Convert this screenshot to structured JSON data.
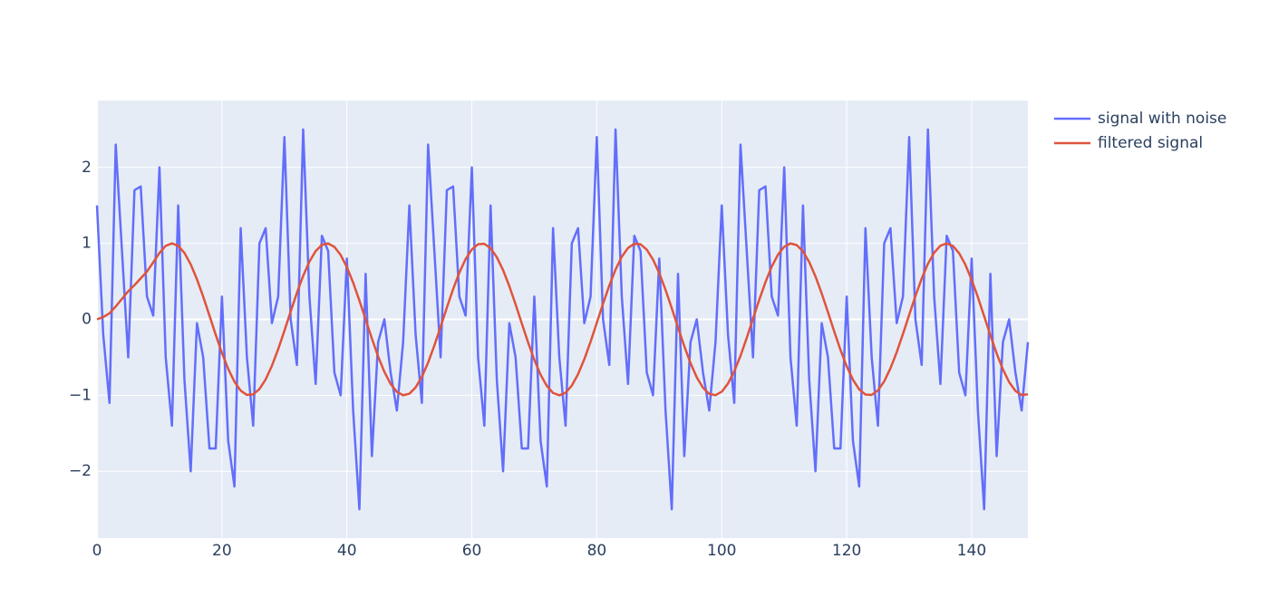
{
  "chart_data": {
    "type": "line",
    "x": [
      0,
      1,
      2,
      3,
      4,
      5,
      6,
      7,
      8,
      9,
      10,
      11,
      12,
      13,
      14,
      15,
      16,
      17,
      18,
      19,
      20,
      21,
      22,
      23,
      24,
      25,
      26,
      27,
      28,
      29,
      30,
      31,
      32,
      33,
      34,
      35,
      36,
      37,
      38,
      39,
      40,
      41,
      42,
      43,
      44,
      45,
      46,
      47,
      48,
      49,
      50,
      51,
      52,
      53,
      54,
      55,
      56,
      57,
      58,
      59,
      60,
      61,
      62,
      63,
      64,
      65,
      66,
      67,
      68,
      69,
      70,
      71,
      72,
      73,
      74,
      75,
      76,
      77,
      78,
      79,
      80,
      81,
      82,
      83,
      84,
      85,
      86,
      87,
      88,
      89,
      90,
      91,
      92,
      93,
      94,
      95,
      96,
      97,
      98,
      99,
      100,
      101,
      102,
      103,
      104,
      105,
      106,
      107,
      108,
      109,
      110,
      111,
      112,
      113,
      114,
      115,
      116,
      117,
      118,
      119,
      120,
      121,
      122,
      123,
      124,
      125,
      126,
      127,
      128,
      129,
      130,
      131,
      132,
      133,
      134,
      135,
      136,
      137,
      138,
      139,
      140,
      141,
      142,
      143,
      144,
      145,
      146,
      147,
      148,
      149
    ],
    "series": [
      {
        "name": "signal with noise",
        "color": "#636efa",
        "values": [
          1.5,
          -0.2,
          -1.1,
          2.3,
          0.9,
          -0.5,
          1.7,
          1.75,
          0.3,
          0.05,
          2.0,
          -0.5,
          -1.4,
          1.5,
          -0.8,
          -2.0,
          -0.05,
          -0.5,
          -1.7,
          -1.7,
          0.3,
          -1.6,
          -2.2,
          1.2,
          -0.5,
          -1.4,
          1.0,
          1.2,
          -0.05,
          0.3,
          2.4,
          0.0,
          -0.6,
          2.5,
          0.3,
          -0.85,
          1.1,
          0.9,
          -0.7,
          -1.0,
          0.8,
          -1.2,
          -2.5,
          0.6,
          -1.8,
          -0.3,
          0.0,
          -0.7,
          -1.2,
          -0.3,
          1.5,
          -0.2,
          -1.1,
          2.3,
          0.9,
          -0.5,
          1.7,
          1.75,
          0.3,
          0.05,
          2.0,
          -0.5,
          -1.4,
          1.5,
          -0.8,
          -2.0,
          -0.05,
          -0.5,
          -1.7,
          -1.7,
          0.3,
          -1.6,
          -2.2,
          1.2,
          -0.5,
          -1.4,
          1.0,
          1.2,
          -0.05,
          0.3,
          2.4,
          0.0,
          -0.6,
          2.5,
          0.3,
          -0.85,
          1.1,
          0.9,
          -0.7,
          -1.0,
          0.8,
          -1.2,
          -2.5,
          0.6,
          -1.8,
          -0.3,
          0.0,
          -0.7,
          -1.2,
          -0.3,
          1.5,
          -0.2,
          -1.1,
          2.3,
          0.9,
          -0.5,
          1.7,
          1.75,
          0.3,
          0.05,
          2.0,
          -0.5,
          -1.4,
          1.5,
          -0.8,
          -2.0,
          -0.05,
          -0.5,
          -1.7,
          -1.7,
          0.3,
          -1.6,
          -2.2,
          1.2,
          -0.5,
          -1.4,
          1.0,
          1.2,
          -0.05,
          0.3,
          2.4,
          0.0,
          -0.6,
          2.5,
          0.3,
          -0.85,
          1.1,
          0.9,
          -0.7,
          -1.0,
          0.8,
          -1.2,
          -2.5,
          0.6,
          -1.8,
          -0.3,
          0.0,
          -0.7,
          -1.2,
          -0.3
        ]
      },
      {
        "name": "filtered signal",
        "color": "#e0533b",
        "values": [
          0,
          0.03,
          0.08,
          0.17,
          0.27,
          0.37,
          0.45,
          0.54,
          0.63,
          0.75,
          0.874,
          0.968,
          1.0,
          0.968,
          0.874,
          0.724,
          0.528,
          0.299,
          0.05,
          -0.202,
          -0.441,
          -0.652,
          -0.821,
          -0.938,
          -0.995,
          -0.988,
          -0.918,
          -0.79,
          -0.611,
          -0.393,
          -0.15,
          0.103,
          0.349,
          0.573,
          0.76,
          0.899,
          0.98,
          0.999,
          0.954,
          0.848,
          0.687,
          0.483,
          0.248,
          -0.002,
          -0.253,
          -0.488,
          -0.691,
          -0.85,
          -0.955,
          -0.999,
          -0.979,
          -0.896,
          -0.757,
          -0.569,
          -0.344,
          -0.098,
          0.155,
          0.397,
          0.615,
          0.793,
          0.92,
          0.989,
          0.994,
          0.936,
          0.818,
          0.648,
          0.437,
          0.197,
          -0.055,
          -0.303,
          -0.533,
          -0.728,
          -0.876,
          -0.969,
          -1.0,
          -0.967,
          -0.872,
          -0.722,
          -0.525,
          -0.295,
          -0.046,
          0.206,
          0.445,
          0.655,
          0.824,
          0.94,
          0.995,
          0.988,
          0.917,
          0.787,
          0.608,
          0.389,
          0.146,
          -0.107,
          -0.353,
          -0.576,
          -0.763,
          -0.9,
          -0.981,
          -0.998,
          -0.952,
          -0.845,
          -0.684,
          -0.48,
          -0.244,
          0.007,
          0.257,
          0.491,
          0.694,
          0.852,
          0.956,
          0.999,
          0.978,
          0.894,
          0.754,
          0.565,
          0.34,
          0.094,
          -0.159,
          -0.401,
          -0.618,
          -0.795,
          -0.922,
          -0.99,
          -0.994,
          -0.935,
          -0.816,
          -0.645,
          -0.433,
          -0.193,
          0.059,
          0.307,
          0.536,
          0.731,
          0.878,
          0.97,
          1.0,
          0.966,
          0.87,
          0.719,
          0.521,
          0.291,
          0.042,
          -0.21,
          -0.449,
          -0.658,
          -0.826,
          -0.941,
          -0.996,
          -0.987
        ]
      }
    ],
    "xlim": [
      0,
      149
    ],
    "xticks": [
      0,
      20,
      40,
      60,
      80,
      100,
      120,
      140
    ],
    "ylim": [
      -2.88,
      2.88
    ],
    "yticks": [
      {
        "value": -2,
        "label": "−2"
      },
      {
        "value": -1,
        "label": "−1"
      },
      0,
      1,
      2
    ],
    "grid": true,
    "legend": "right"
  }
}
